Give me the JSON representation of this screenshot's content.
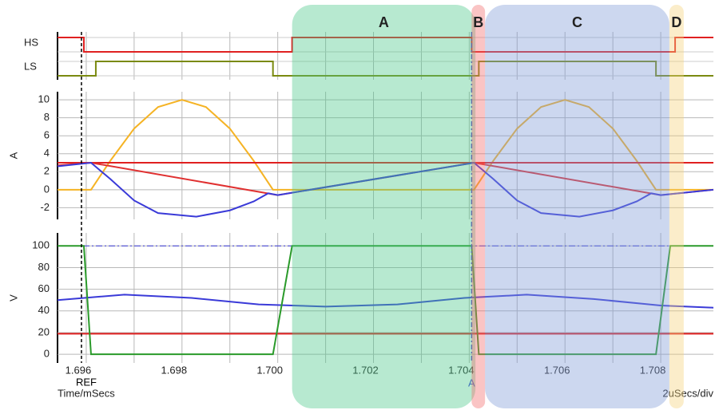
{
  "time_axis": {
    "label": "Time/mSecs",
    "scale": "2uSecs/div",
    "xlim": [
      1.6954,
      1.7091
    ],
    "xticks": [
      1.696,
      1.698,
      {
        "value": 1.7,
        "label": "1.700"
      },
      1.702,
      1.704,
      1.706,
      1.708
    ],
    "xgrid": [
      1.696,
      1.697,
      1.698,
      1.699,
      1.7,
      1.701,
      1.702,
      1.703,
      1.704,
      1.705,
      1.706,
      1.707,
      1.708
    ]
  },
  "cursors": [
    {
      "label": "REF",
      "x": 1.6959,
      "color": "#000000"
    },
    {
      "label": "A",
      "x": 1.70405,
      "color": "#3a3ad8"
    }
  ],
  "regions": [
    {
      "label": "A",
      "x": [
        1.7003,
        1.70413
      ],
      "color": "#4cc78a"
    },
    {
      "label": "B",
      "x": [
        1.70405,
        1.70433
      ],
      "color": "#f26b6b"
    },
    {
      "label": "C",
      "x": [
        1.70433,
        1.70818
      ],
      "color": "#7f9bd6"
    },
    {
      "label": "D",
      "x": [
        1.70818,
        1.70848
      ],
      "color": "#f5d27a"
    }
  ],
  "chart_data": [
    {
      "type": "step",
      "series": [
        {
          "name": "HS",
          "color": "#e02020",
          "x": [
            1.6954,
            1.69595,
            1.7003,
            1.70405,
            1.7083
          ],
          "values": [
            1,
            0,
            1,
            0,
            1
          ]
        },
        {
          "name": "LS",
          "color": "#7a8a10",
          "x": [
            1.6954,
            1.6962,
            1.6999,
            1.7042,
            1.7079
          ],
          "values": [
            0,
            1,
            0,
            1,
            0
          ]
        }
      ]
    },
    {
      "type": "line",
      "ylabel": "A",
      "ylim": [
        -3.3,
        10.9
      ],
      "yticks": [
        -2,
        0,
        2,
        4,
        6,
        8,
        10
      ],
      "grid": true,
      "series": [
        {
          "name": "orange",
          "color": "#f5b324",
          "x": [
            1.6954,
            1.6961,
            1.6965,
            1.697,
            1.6975,
            1.698,
            1.6985,
            1.699,
            1.6995,
            1.6999,
            1.7041,
            1.7045,
            1.705,
            1.7055,
            1.706,
            1.7065,
            1.707,
            1.7075,
            1.7079,
            1.7091
          ],
          "values": [
            0,
            0,
            3.2,
            6.8,
            9.2,
            10,
            9.2,
            6.8,
            3.2,
            0,
            0,
            3.2,
            6.8,
            9.2,
            10,
            9.2,
            6.8,
            3.2,
            0,
            0
          ]
        },
        {
          "name": "red-flat",
          "color": "#e02020",
          "x": [
            1.6954,
            1.7091
          ],
          "values": [
            3,
            3
          ]
        },
        {
          "name": "red",
          "color": "#e03030",
          "x": [
            1.6954,
            1.6961,
            1.7,
            1.7041,
            1.708,
            1.7091
          ],
          "values": [
            2.7,
            3,
            -0.6,
            3,
            -0.6,
            0
          ]
        },
        {
          "name": "blue",
          "color": "#3a3ad8",
          "x": [
            1.6954,
            1.6961,
            1.6965,
            1.697,
            1.6975,
            1.6983,
            1.699,
            1.6995,
            1.6998,
            1.7,
            1.7041,
            1.7045,
            1.705,
            1.7055,
            1.7063,
            1.707,
            1.7075,
            1.7078,
            1.708,
            1.7091
          ],
          "values": [
            2.6,
            3,
            1.2,
            -1.2,
            -2.6,
            -3,
            -2.3,
            -1.3,
            -0.4,
            -0.6,
            3,
            1.2,
            -1.2,
            -2.6,
            -3,
            -2.3,
            -1.3,
            -0.4,
            -0.6,
            0
          ]
        }
      ]
    },
    {
      "type": "line",
      "ylabel": "V",
      "ylim": [
        -8,
        112
      ],
      "yticks": [
        0,
        20,
        40,
        60,
        80,
        100
      ],
      "grid": true,
      "series": [
        {
          "name": "blue-dash",
          "color": "#3a3ad8",
          "dash": true,
          "x": [
            1.6954,
            1.7091
          ],
          "values": [
            100,
            100
          ]
        },
        {
          "name": "red",
          "color": "#e02020",
          "x": [
            1.6954,
            1.7091
          ],
          "values": [
            19,
            19
          ]
        },
        {
          "name": "blue",
          "color": "#3a3ad8",
          "x": [
            1.6954,
            1.6968,
            1.6982,
            1.6996,
            1.701,
            1.7025,
            1.7039,
            1.7052,
            1.7066,
            1.708,
            1.7091
          ],
          "values": [
            50,
            55,
            52,
            46,
            44,
            46,
            52,
            55,
            51,
            45,
            43
          ]
        },
        {
          "name": "green",
          "color": "#2a9a2a",
          "x": [
            1.6954,
            1.69595,
            1.6961,
            1.6999,
            1.7003,
            1.70405,
            1.7042,
            1.7079,
            1.7082,
            1.7091
          ],
          "values": [
            100,
            100,
            0,
            0,
            100,
            100,
            0,
            0,
            100,
            100
          ]
        }
      ]
    }
  ]
}
